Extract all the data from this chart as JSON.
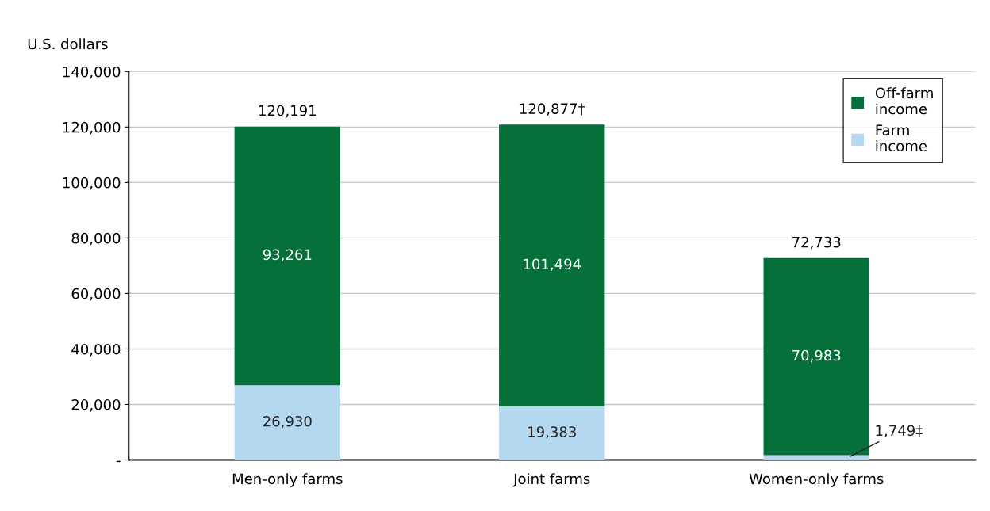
{
  "chart_data": {
    "type": "bar",
    "stacked": true,
    "ylabel": "U.S. dollars",
    "categories": [
      "Men-only farms",
      "Joint farms",
      "Women-only farms"
    ],
    "series": [
      {
        "name": "Farm income",
        "color": "#b5d8f1",
        "values": [
          26930,
          19383,
          1749
        ],
        "value_labels": [
          "26,930",
          "19,383",
          "1,749‡"
        ]
      },
      {
        "name": "Off-farm income",
        "color": "#06703a",
        "values": [
          93261,
          101494,
          70983
        ],
        "value_labels": [
          "93,261",
          "101,494",
          "70,983"
        ]
      }
    ],
    "totals": [
      "120,191",
      "120,877†",
      "72,733"
    ],
    "ylim": [
      0,
      140000
    ],
    "yticks": [
      {
        "value": 0,
        "label": "-"
      },
      {
        "value": 20000,
        "label": "20,000"
      },
      {
        "value": 40000,
        "label": "40,000"
      },
      {
        "value": 60000,
        "label": "60,000"
      },
      {
        "value": 80000,
        "label": "80,000"
      },
      {
        "value": 100000,
        "label": "100,000"
      },
      {
        "value": 120000,
        "label": "120,000"
      },
      {
        "value": 140000,
        "label": "140,000"
      }
    ],
    "grid": "y",
    "legend": "top right"
  }
}
